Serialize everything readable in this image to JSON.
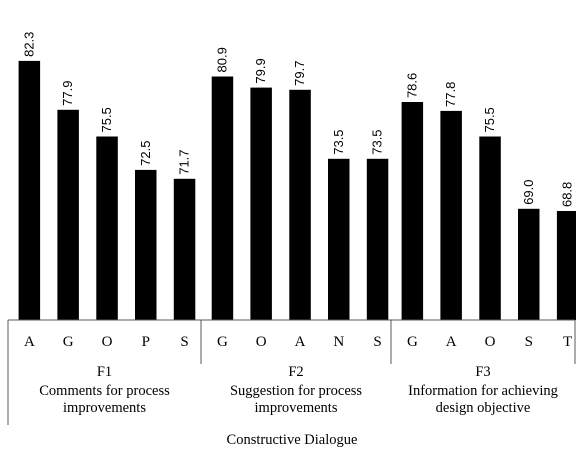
{
  "chart_data": {
    "type": "bar",
    "colors": {
      "bar": "#000000",
      "axis": "#595959",
      "text": "#000000"
    },
    "groups": [
      {
        "code": "F1",
        "label_lines": [
          "Comments for process",
          "improvements"
        ],
        "categories": [
          "A",
          "G",
          "O",
          "P",
          "S"
        ],
        "values": [
          82.3,
          77.9,
          75.5,
          72.5,
          71.7
        ]
      },
      {
        "code": "F2",
        "label_lines": [
          "Suggestion for process",
          "improvements"
        ],
        "categories": [
          "G",
          "O",
          "A",
          "N",
          "S"
        ],
        "values": [
          80.9,
          79.9,
          79.7,
          73.5,
          73.5
        ]
      },
      {
        "code": "F3",
        "label_lines": [
          "Information for achieving",
          "design objective"
        ],
        "categories": [
          "G",
          "A",
          "O",
          "S",
          "T"
        ],
        "values": [
          78.6,
          77.8,
          75.5,
          69.0,
          68.8
        ]
      }
    ],
    "value_labels": [
      [
        "82.3",
        "77.9",
        "75.5",
        "72.5",
        "71.7"
      ],
      [
        "80.9",
        "79.9",
        "79.7",
        "73.5",
        "73.5"
      ],
      [
        "78.6",
        "77.8",
        "75.5",
        "69.0",
        "68.8"
      ]
    ],
    "xlabel": "Constructive Dialogue",
    "ylim": [
      59,
      84
    ],
    "grid": false,
    "legend": "none"
  }
}
